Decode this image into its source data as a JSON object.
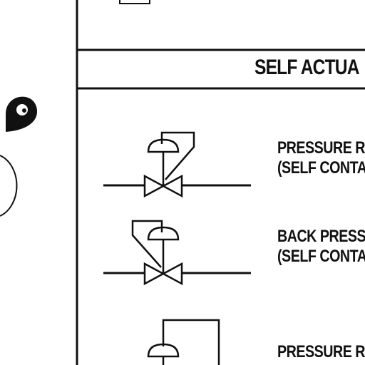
{
  "section": {
    "title": "SELF ACTUA"
  },
  "symbols": [
    {
      "line1": "PRESSURE R",
      "line2": "(SELF CONTA"
    },
    {
      "line1": "BACK PRESS",
      "line2": "(SELF CONTA"
    },
    {
      "line1": "PRESSURE R"
    }
  ],
  "colors": {
    "ink": "#111111",
    "paper": "#ffffff"
  },
  "icons": [
    "map-pin-icon"
  ]
}
